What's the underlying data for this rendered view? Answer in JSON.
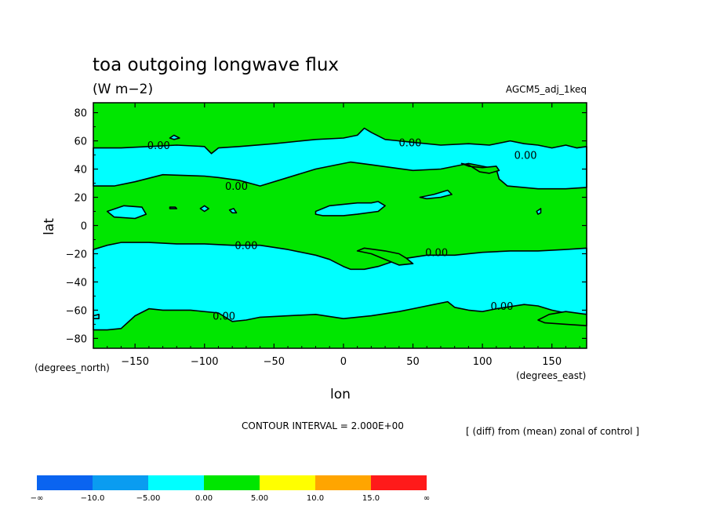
{
  "chart_data": {
    "type": "heatmap",
    "title": "toa outgoing longwave flux",
    "units": "(W m−2)",
    "experiment": "AGCM5_adj_1keq",
    "xlabel": "lon",
    "ylabel": "lat",
    "x_unit_label": "(degrees_east)",
    "y_unit_label": "(degrees_north)",
    "xlim": [
      -180,
      175
    ],
    "ylim": [
      -87,
      87
    ],
    "x_ticks": [
      -150,
      -100,
      -50,
      0,
      50,
      100,
      150
    ],
    "x_tick_labels": [
      "−150",
      "−100",
      "−50",
      "0",
      "50",
      "100",
      "150"
    ],
    "y_ticks": [
      -80,
      -60,
      -40,
      -20,
      0,
      20,
      40,
      60,
      80
    ],
    "y_tick_labels": [
      "−80",
      "−60",
      "−40",
      "−20",
      "0",
      "20",
      "40",
      "60",
      "80"
    ],
    "contour_interval_text": "CONTOUR INTERVAL = 2.000E+00",
    "note": "[ (diff) from (mean) zonal of control ]",
    "contour_label": "0.00",
    "colors": {
      "background_fill": "#00e600",
      "negative_fill": "#00ffff",
      "contour_line": "#000000"
    },
    "colorbar": {
      "colors": [
        "#0a64f0",
        "#0a9cf0",
        "#00ffff",
        "#00e600",
        "#ffff00",
        "#ffa500",
        "#ff1a1a"
      ],
      "labels": [
        "−∞",
        "−10.0",
        "−5.00",
        "0.00",
        "5.00",
        "10.0",
        "15.0",
        "∞"
      ]
    },
    "regions": [
      {
        "name": "northern-negative-band",
        "points": [
          [
            -180,
            55
          ],
          [
            -160,
            55
          ],
          [
            -140,
            56
          ],
          [
            -120,
            57
          ],
          [
            -100,
            56
          ],
          [
            -95,
            51
          ],
          [
            -90,
            55
          ],
          [
            -75,
            56
          ],
          [
            -50,
            58
          ],
          [
            -20,
            61
          ],
          [
            0,
            62
          ],
          [
            10,
            64
          ],
          [
            15,
            69
          ],
          [
            20,
            66
          ],
          [
            30,
            61
          ],
          [
            50,
            59
          ],
          [
            70,
            57
          ],
          [
            90,
            58
          ],
          [
            105,
            57
          ],
          [
            120,
            60
          ],
          [
            130,
            58
          ],
          [
            140,
            57
          ],
          [
            150,
            55
          ],
          [
            160,
            57
          ],
          [
            168,
            55
          ],
          [
            175,
            56
          ],
          [
            175,
            27
          ],
          [
            160,
            26
          ],
          [
            140,
            26
          ],
          [
            118,
            28
          ],
          [
            112,
            33
          ],
          [
            110,
            40
          ],
          [
            100,
            42
          ],
          [
            90,
            44
          ],
          [
            70,
            40
          ],
          [
            50,
            39
          ],
          [
            20,
            43
          ],
          [
            5,
            45
          ],
          [
            -5,
            43
          ],
          [
            -20,
            40
          ],
          [
            -40,
            34
          ],
          [
            -60,
            28
          ],
          [
            -75,
            32
          ],
          [
            -90,
            34
          ],
          [
            -100,
            35
          ],
          [
            -130,
            36
          ],
          [
            -150,
            31
          ],
          [
            -165,
            28
          ],
          [
            -180,
            28
          ]
        ]
      },
      {
        "name": "eastern-gap-in-north-band",
        "points": [
          [
            85,
            44
          ],
          [
            90,
            42
          ],
          [
            100,
            41
          ],
          [
            110,
            42
          ],
          [
            112,
            39
          ],
          [
            105,
            37
          ],
          [
            98,
            38
          ],
          [
            90,
            43
          ]
        ]
      },
      {
        "name": "southern-negative-band",
        "points": [
          [
            -180,
            -17
          ],
          [
            -170,
            -14
          ],
          [
            -160,
            -12
          ],
          [
            -140,
            -12
          ],
          [
            -120,
            -13
          ],
          [
            -100,
            -13
          ],
          [
            -80,
            -14
          ],
          [
            -60,
            -14
          ],
          [
            -40,
            -17
          ],
          [
            -20,
            -21
          ],
          [
            -10,
            -24
          ],
          [
            0,
            -29
          ],
          [
            5,
            -31
          ],
          [
            15,
            -31
          ],
          [
            25,
            -29
          ],
          [
            40,
            -24
          ],
          [
            60,
            -21
          ],
          [
            80,
            -21
          ],
          [
            100,
            -19
          ],
          [
            120,
            -18
          ],
          [
            140,
            -18
          ],
          [
            160,
            -17
          ],
          [
            175,
            -16
          ],
          [
            175,
            -63
          ],
          [
            160,
            -62
          ],
          [
            150,
            -60
          ],
          [
            140,
            -57
          ],
          [
            130,
            -56
          ],
          [
            110,
            -59
          ],
          [
            100,
            -61
          ],
          [
            90,
            -60
          ],
          [
            80,
            -58
          ],
          [
            75,
            -54
          ],
          [
            65,
            -56
          ],
          [
            50,
            -59
          ],
          [
            40,
            -61
          ],
          [
            20,
            -64
          ],
          [
            0,
            -66
          ],
          [
            -20,
            -63
          ],
          [
            -40,
            -64
          ],
          [
            -60,
            -65
          ],
          [
            -70,
            -67
          ],
          [
            -80,
            -68
          ],
          [
            -90,
            -62
          ],
          [
            -110,
            -60
          ],
          [
            -130,
            -60
          ],
          [
            -140,
            -59
          ],
          [
            -150,
            -64
          ],
          [
            -160,
            -73
          ],
          [
            -170,
            -74
          ],
          [
            -180,
            -74
          ]
        ]
      },
      {
        "name": "southern-green-tongue",
        "points": [
          [
            15,
            -16
          ],
          [
            30,
            -18
          ],
          [
            40,
            -20
          ],
          [
            45,
            -23
          ],
          [
            50,
            -27
          ],
          [
            40,
            -28
          ],
          [
            30,
            -24
          ],
          [
            20,
            -20
          ],
          [
            10,
            -18
          ]
        ]
      },
      {
        "name": "southeastern-green-patch",
        "points": [
          [
            140,
            -67
          ],
          [
            148,
            -63
          ],
          [
            160,
            -61
          ],
          [
            175,
            -63
          ],
          [
            175,
            -71
          ],
          [
            160,
            -70
          ],
          [
            145,
            -69
          ]
        ]
      },
      {
        "name": "tropical-cell-west",
        "points": [
          [
            -170,
            10
          ],
          [
            -158,
            14
          ],
          [
            -145,
            13
          ],
          [
            -142,
            8
          ],
          [
            -150,
            5
          ],
          [
            -165,
            6
          ]
        ]
      },
      {
        "name": "tropical-cell-central",
        "points": [
          [
            -20,
            10
          ],
          [
            -10,
            14
          ],
          [
            10,
            16
          ],
          [
            20,
            16
          ],
          [
            25,
            17
          ],
          [
            30,
            14
          ],
          [
            25,
            10
          ],
          [
            10,
            8
          ],
          [
            0,
            7
          ],
          [
            -15,
            7
          ],
          [
            -20,
            8
          ]
        ]
      },
      {
        "name": "tropical-cell-north-east",
        "points": [
          [
            55,
            20
          ],
          [
            65,
            22
          ],
          [
            75,
            25
          ],
          [
            78,
            22
          ],
          [
            70,
            20
          ],
          [
            60,
            19
          ]
        ]
      },
      {
        "name": "small-cell-a",
        "points": [
          [
            -125,
            62
          ],
          [
            -122,
            64
          ],
          [
            -118,
            62
          ],
          [
            -122,
            61
          ]
        ]
      },
      {
        "name": "small-cell-b",
        "points": [
          [
            -125,
            13
          ],
          [
            -121,
            13
          ],
          [
            -120,
            12
          ],
          [
            -125,
            12
          ]
        ]
      },
      {
        "name": "small-cell-c",
        "points": [
          [
            -103,
            12
          ],
          [
            -100,
            14
          ],
          [
            -97,
            12
          ],
          [
            -100,
            10
          ]
        ]
      },
      {
        "name": "small-cell-d",
        "points": [
          [
            -82,
            11
          ],
          [
            -79,
            12
          ],
          [
            -77,
            9
          ],
          [
            -80,
            9
          ]
        ]
      },
      {
        "name": "small-cell-e",
        "points": [
          [
            139,
            10
          ],
          [
            142,
            12
          ],
          [
            142,
            9
          ],
          [
            140,
            8
          ]
        ]
      },
      {
        "name": "small-cell-f",
        "points": [
          [
            -180,
            -64
          ],
          [
            -176,
            -63
          ],
          [
            -176,
            -66
          ],
          [
            -180,
            -66
          ]
        ]
      }
    ],
    "contour_labels": [
      {
        "lon": -133,
        "lat": 57
      },
      {
        "lon": -77,
        "lat": 28
      },
      {
        "lon": -70,
        "lat": -14
      },
      {
        "lon": 48,
        "lat": 59
      },
      {
        "lon": 131,
        "lat": 50
      },
      {
        "lon": 67,
        "lat": -19
      },
      {
        "lon": -86,
        "lat": -64
      },
      {
        "lon": 114,
        "lat": -57
      }
    ]
  }
}
